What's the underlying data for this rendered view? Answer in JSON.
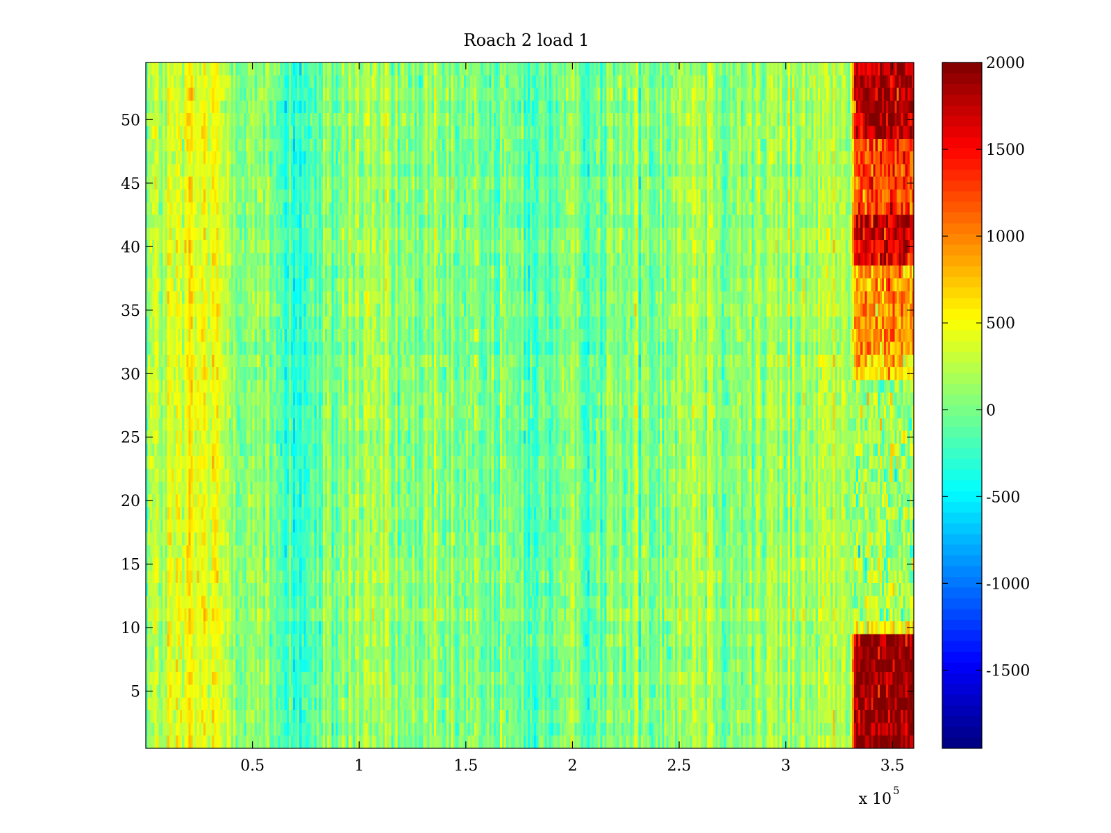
{
  "chart_data": {
    "type": "heatmap",
    "title": "Roach 2 load 1",
    "xlabel": "",
    "ylabel": "",
    "xlim": [
      0,
      360000
    ],
    "ylim": [
      0.5,
      54.5
    ],
    "rows": 54,
    "columns": 360,
    "x_ticks": [
      {
        "value": 50000,
        "label": "0.5"
      },
      {
        "value": 100000,
        "label": "1"
      },
      {
        "value": 150000,
        "label": "1.5"
      },
      {
        "value": 200000,
        "label": "2"
      },
      {
        "value": 250000,
        "label": "2.5"
      },
      {
        "value": 300000,
        "label": "3"
      },
      {
        "value": 350000,
        "label": "3.5"
      }
    ],
    "x_exponent_label": {
      "base": "x 10",
      "exponent": "5"
    },
    "y_ticks": [
      {
        "value": 5,
        "label": "5"
      },
      {
        "value": 10,
        "label": "10"
      },
      {
        "value": 15,
        "label": "15"
      },
      {
        "value": 20,
        "label": "20"
      },
      {
        "value": 25,
        "label": "25"
      },
      {
        "value": 30,
        "label": "30"
      },
      {
        "value": 35,
        "label": "35"
      },
      {
        "value": 40,
        "label": "40"
      },
      {
        "value": 45,
        "label": "45"
      },
      {
        "value": 50,
        "label": "50"
      }
    ],
    "colorbar": {
      "colormap": "jet",
      "range": [
        -1950,
        2000
      ],
      "ticks": [
        {
          "value": 2000,
          "label": "2000"
        },
        {
          "value": 1500,
          "label": "1500"
        },
        {
          "value": 1000,
          "label": "1000"
        },
        {
          "value": 500,
          "label": "500"
        },
        {
          "value": 0,
          "label": "0"
        },
        {
          "value": -500,
          "label": "-500"
        },
        {
          "value": -1000,
          "label": "-1000"
        },
        {
          "value": -1500,
          "label": "-1500"
        }
      ]
    },
    "column_trend": [
      {
        "x": 0,
        "value": 150
      },
      {
        "x": 10000,
        "value": 260
      },
      {
        "x": 25000,
        "value": 430
      },
      {
        "x": 35000,
        "value": 350
      },
      {
        "x": 45000,
        "value": 180
      },
      {
        "x": 60000,
        "value": -60
      },
      {
        "x": 70000,
        "value": -260
      },
      {
        "x": 80000,
        "value": -160
      },
      {
        "x": 95000,
        "value": 110
      },
      {
        "x": 105000,
        "value": 200
      },
      {
        "x": 120000,
        "value": 40
      },
      {
        "x": 140000,
        "value": -60
      },
      {
        "x": 160000,
        "value": -20
      },
      {
        "x": 180000,
        "value": -110
      },
      {
        "x": 200000,
        "value": -60
      },
      {
        "x": 220000,
        "value": 10
      },
      {
        "x": 240000,
        "value": 110
      },
      {
        "x": 255000,
        "value": 260
      },
      {
        "x": 265000,
        "value": 200
      },
      {
        "x": 280000,
        "value": 80
      },
      {
        "x": 300000,
        "value": 110
      },
      {
        "x": 315000,
        "value": 190
      },
      {
        "x": 328000,
        "value": 250
      },
      {
        "x": 360000,
        "value": 250
      }
    ],
    "noise_amplitude": 260,
    "high_regions": [
      {
        "x_range": [
          330000,
          360000
        ],
        "y_range": [
          0.5,
          9.5
        ],
        "value": 1950
      },
      {
        "x_range": [
          330000,
          360000
        ],
        "y_range": [
          38.5,
          42.5
        ],
        "value": 1700
      },
      {
        "x_range": [
          330000,
          360000
        ],
        "y_range": [
          48.5,
          54.5
        ],
        "value": 1800
      },
      {
        "x_range": [
          330000,
          360000
        ],
        "y_range": [
          42.5,
          48.5
        ],
        "value": 1250
      },
      {
        "x_range": [
          330000,
          360000
        ],
        "y_range": [
          31.5,
          38.5
        ],
        "value": 950
      },
      {
        "x_range": [
          330000,
          360000
        ],
        "y_range": [
          29.5,
          31.5
        ],
        "value": 650
      },
      {
        "x_range": [
          330000,
          360000
        ],
        "y_range": [
          10.5,
          29.5
        ],
        "value": 150
      },
      {
        "x_range": [
          330000,
          360000
        ],
        "y_range": [
          9.5,
          10.5
        ],
        "value": 550
      }
    ]
  }
}
